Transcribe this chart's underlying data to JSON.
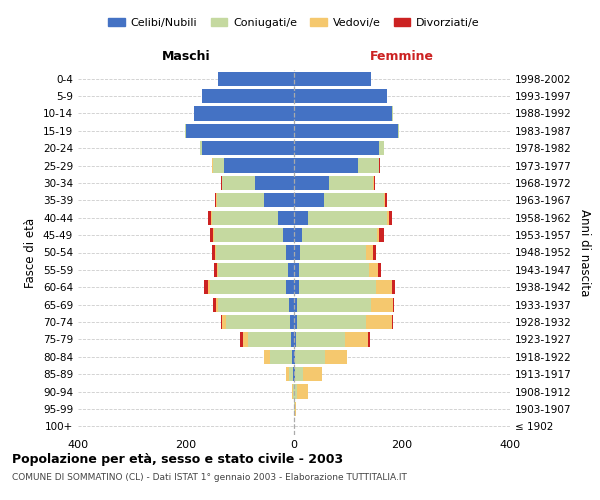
{
  "age_groups": [
    "100+",
    "95-99",
    "90-94",
    "85-89",
    "80-84",
    "75-79",
    "70-74",
    "65-69",
    "60-64",
    "55-59",
    "50-54",
    "45-49",
    "40-44",
    "35-39",
    "30-34",
    "25-29",
    "20-24",
    "15-19",
    "10-14",
    "5-9",
    "0-4"
  ],
  "birth_years": [
    "≤ 1902",
    "1903-1907",
    "1908-1912",
    "1913-1917",
    "1918-1922",
    "1923-1927",
    "1928-1932",
    "1933-1937",
    "1938-1942",
    "1943-1947",
    "1948-1952",
    "1953-1957",
    "1958-1962",
    "1963-1967",
    "1968-1972",
    "1973-1977",
    "1978-1982",
    "1983-1987",
    "1988-1992",
    "1993-1997",
    "1998-2002"
  ],
  "male": {
    "celibi": [
      0,
      0,
      0,
      1,
      3,
      5,
      8,
      10,
      15,
      12,
      15,
      20,
      30,
      55,
      72,
      130,
      170,
      200,
      185,
      170,
      140
    ],
    "coniugati": [
      0,
      0,
      2,
      8,
      42,
      80,
      118,
      130,
      140,
      128,
      130,
      128,
      122,
      88,
      62,
      20,
      5,
      2,
      1,
      0,
      0
    ],
    "vedovi": [
      0,
      0,
      1,
      5,
      10,
      10,
      8,
      5,
      4,
      3,
      2,
      2,
      2,
      1,
      0,
      1,
      0,
      0,
      0,
      0,
      0
    ],
    "divorziati": [
      0,
      0,
      0,
      0,
      0,
      5,
      2,
      5,
      7,
      5,
      5,
      5,
      5,
      2,
      2,
      1,
      0,
      0,
      0,
      0,
      0
    ]
  },
  "female": {
    "nubili": [
      0,
      0,
      0,
      1,
      2,
      3,
      5,
      5,
      10,
      10,
      12,
      15,
      25,
      55,
      65,
      118,
      158,
      192,
      182,
      172,
      142
    ],
    "coniugate": [
      0,
      1,
      5,
      15,
      55,
      92,
      128,
      138,
      142,
      128,
      122,
      138,
      148,
      112,
      82,
      40,
      8,
      3,
      1,
      0,
      0
    ],
    "vedove": [
      0,
      2,
      20,
      35,
      42,
      42,
      48,
      40,
      30,
      18,
      12,
      5,
      3,
      2,
      1,
      0,
      0,
      0,
      0,
      0,
      0
    ],
    "divorziate": [
      0,
      0,
      0,
      0,
      0,
      3,
      2,
      2,
      5,
      5,
      5,
      8,
      5,
      3,
      2,
      2,
      0,
      0,
      0,
      0,
      0
    ]
  },
  "colors": {
    "celibi": "#4472c4",
    "coniugati": "#c5d9a0",
    "vedovi": "#f5c86e",
    "divorziati": "#cc2222"
  },
  "title": "Popolazione per età, sesso e stato civile - 2003",
  "subtitle": "COMUNE DI SOMMATINO (CL) - Dati ISTAT 1° gennaio 2003 - Elaborazione TUTTITALIA.IT",
  "xlabel_left": "Maschi",
  "xlabel_right": "Femmine",
  "ylabel": "Fasce di età",
  "ylabel_right": "Anni di nascita",
  "xlim": 400,
  "legend_labels": [
    "Celibi/Nubili",
    "Coniugati/e",
    "Vedovi/e",
    "Divorziati/e"
  ],
  "bg_color": "#ffffff"
}
